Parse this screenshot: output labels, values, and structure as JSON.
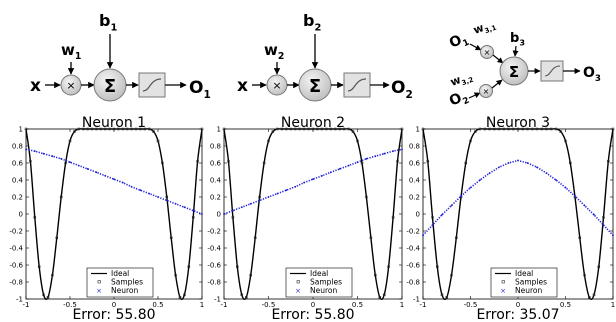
{
  "diagrams": [
    {
      "input_label": "x",
      "weight_label": "w1",
      "bias_label": "b1",
      "sum_symbol": "Σ",
      "output_label": "O1"
    },
    {
      "input_label": "x",
      "weight_label": "w2",
      "bias_label": "b2",
      "sum_symbol": "Σ",
      "output_label": "O2"
    },
    {
      "input1_label": "O1",
      "weight1_label": "w3,1",
      "input2_label": "O2",
      "weight2_label": "w3,2",
      "bias_label": "b3",
      "sum_symbol": "Σ",
      "output_label": "O3"
    }
  ],
  "colors": {
    "ideal": "#000000",
    "neuron": "#1f1fd8",
    "node_fill": "#d6d6d6",
    "box_fill": "#e2e2e2"
  },
  "icons": [
    "multiply-node-icon",
    "summation-node-icon",
    "sigmoid-activation-icon",
    "arrow-icon"
  ],
  "chart_data": [
    {
      "type": "line",
      "title": "Neuron 1",
      "caption": "Error: 55.80",
      "xlim": [
        -1,
        1
      ],
      "ylim": [
        -1,
        1
      ],
      "xticks": [
        "-1",
        "-0.5",
        "0",
        "0.5",
        "1"
      ],
      "yticks": [
        "-1",
        "-0.8",
        "-0.6",
        "-0.4",
        "-0.2",
        "0",
        "0.2",
        "0.4",
        "0.6",
        "0.8",
        "1"
      ],
      "legend": {
        "position": "bottom-center",
        "entries": [
          "Ideal",
          "Samples",
          "Neuron"
        ]
      },
      "series": [
        {
          "name": "Ideal",
          "x": [
            -1.0,
            -0.95,
            -0.9,
            -0.85,
            -0.8,
            -0.75,
            -0.7,
            -0.65,
            -0.6,
            -0.55,
            -0.5,
            -0.45,
            -0.4,
            -0.35,
            -0.3,
            -0.25,
            -0.2,
            -0.15,
            -0.1,
            -0.05,
            0.0,
            0.05,
            0.1,
            0.15,
            0.2,
            0.25,
            0.3,
            0.35,
            0.4,
            0.45,
            0.5,
            0.55,
            0.6,
            0.65,
            0.7,
            0.75,
            0.8,
            0.85,
            0.9,
            0.95,
            1.0
          ],
          "y": [
            1.0,
            0.62,
            -0.04,
            -0.62,
            -0.95,
            -0.98,
            -0.72,
            -0.28,
            0.2,
            0.6,
            0.86,
            0.97,
            1.0,
            1.0,
            1.0,
            1.0,
            1.0,
            1.0,
            1.0,
            1.0,
            1.0,
            1.0,
            1.0,
            1.0,
            1.0,
            1.0,
            1.0,
            1.0,
            1.0,
            0.97,
            0.86,
            0.6,
            0.2,
            -0.28,
            -0.72,
            -0.98,
            -0.95,
            -0.62,
            -0.04,
            0.62,
            1.0
          ]
        },
        {
          "name": "Neuron",
          "x": [
            -1.0,
            -0.9,
            -0.8,
            -0.7,
            -0.6,
            -0.5,
            -0.4,
            -0.3,
            -0.2,
            -0.1,
            0.0,
            0.1,
            0.2,
            0.3,
            0.4,
            0.5,
            0.6,
            0.7,
            0.8,
            0.9,
            1.0
          ],
          "y": [
            0.76,
            0.74,
            0.71,
            0.68,
            0.65,
            0.61,
            0.57,
            0.53,
            0.49,
            0.45,
            0.41,
            0.37,
            0.32,
            0.28,
            0.24,
            0.2,
            0.16,
            0.12,
            0.08,
            0.04,
            0.0
          ]
        }
      ]
    },
    {
      "type": "line",
      "title": "Neuron 2",
      "caption": "Error: 55.80",
      "xlim": [
        -1,
        1
      ],
      "ylim": [
        -1,
        1
      ],
      "xticks": [
        "-1",
        "-0.5",
        "0",
        "0.5",
        "1"
      ],
      "yticks": [
        "-1",
        "-0.8",
        "-0.6",
        "-0.4",
        "-0.2",
        "0",
        "0.2",
        "0.4",
        "0.6",
        "0.8",
        "1"
      ],
      "legend": {
        "position": "bottom-center",
        "entries": [
          "Ideal",
          "Samples",
          "Neuron"
        ]
      },
      "series": [
        {
          "name": "Ideal",
          "x": [
            -1.0,
            -0.95,
            -0.9,
            -0.85,
            -0.8,
            -0.75,
            -0.7,
            -0.65,
            -0.6,
            -0.55,
            -0.5,
            -0.45,
            -0.4,
            -0.35,
            -0.3,
            -0.25,
            -0.2,
            -0.15,
            -0.1,
            -0.05,
            0.0,
            0.05,
            0.1,
            0.15,
            0.2,
            0.25,
            0.3,
            0.35,
            0.4,
            0.45,
            0.5,
            0.55,
            0.6,
            0.65,
            0.7,
            0.75,
            0.8,
            0.85,
            0.9,
            0.95,
            1.0
          ],
          "y": [
            1.0,
            0.62,
            -0.04,
            -0.62,
            -0.95,
            -0.98,
            -0.72,
            -0.28,
            0.2,
            0.6,
            0.86,
            0.97,
            1.0,
            1.0,
            1.0,
            1.0,
            1.0,
            1.0,
            1.0,
            1.0,
            1.0,
            1.0,
            1.0,
            1.0,
            1.0,
            1.0,
            1.0,
            1.0,
            1.0,
            0.97,
            0.86,
            0.6,
            0.2,
            -0.28,
            -0.72,
            -0.98,
            -0.95,
            -0.62,
            -0.04,
            0.62,
            1.0
          ]
        },
        {
          "name": "Neuron",
          "x": [
            -1.0,
            -0.9,
            -0.8,
            -0.7,
            -0.6,
            -0.5,
            -0.4,
            -0.3,
            -0.2,
            -0.1,
            0.0,
            0.1,
            0.2,
            0.3,
            0.4,
            0.5,
            0.6,
            0.7,
            0.8,
            0.9,
            1.0
          ],
          "y": [
            0.0,
            0.04,
            0.08,
            0.12,
            0.16,
            0.2,
            0.24,
            0.28,
            0.32,
            0.37,
            0.41,
            0.45,
            0.49,
            0.53,
            0.57,
            0.61,
            0.65,
            0.68,
            0.71,
            0.74,
            0.76
          ]
        }
      ]
    },
    {
      "type": "line",
      "title": "Neuron 3",
      "caption": "Error: 35.07",
      "xlim": [
        -1,
        1
      ],
      "ylim": [
        -1,
        1
      ],
      "xticks": [
        "-1",
        "-0.5",
        "0",
        "0.5",
        "1"
      ],
      "yticks": [
        "-1",
        "-0.8",
        "-0.6",
        "-0.4",
        "-0.2",
        "0",
        "0.2",
        "0.4",
        "0.6",
        "0.8",
        "1"
      ],
      "legend": {
        "position": "bottom-center",
        "entries": [
          "Ideal",
          "Samples",
          "Neuron"
        ]
      },
      "series": [
        {
          "name": "Ideal",
          "x": [
            -1.0,
            -0.95,
            -0.9,
            -0.85,
            -0.8,
            -0.75,
            -0.7,
            -0.65,
            -0.6,
            -0.55,
            -0.5,
            -0.45,
            -0.4,
            -0.35,
            -0.3,
            -0.25,
            -0.2,
            -0.15,
            -0.1,
            -0.05,
            0.0,
            0.05,
            0.1,
            0.15,
            0.2,
            0.25,
            0.3,
            0.35,
            0.4,
            0.45,
            0.5,
            0.55,
            0.6,
            0.65,
            0.7,
            0.75,
            0.8,
            0.85,
            0.9,
            0.95,
            1.0
          ],
          "y": [
            1.0,
            0.62,
            -0.04,
            -0.62,
            -0.95,
            -0.98,
            -0.72,
            -0.28,
            0.2,
            0.6,
            0.86,
            0.97,
            1.0,
            1.0,
            1.0,
            1.0,
            1.0,
            1.0,
            1.0,
            1.0,
            1.0,
            1.0,
            1.0,
            1.0,
            1.0,
            1.0,
            1.0,
            1.0,
            1.0,
            0.97,
            0.86,
            0.6,
            0.2,
            -0.28,
            -0.72,
            -0.98,
            -0.95,
            -0.62,
            -0.04,
            0.62,
            1.0
          ]
        },
        {
          "name": "Neuron",
          "x": [
            -1.0,
            -0.9,
            -0.8,
            -0.7,
            -0.6,
            -0.5,
            -0.4,
            -0.3,
            -0.2,
            -0.1,
            0.0,
            0.1,
            0.2,
            0.3,
            0.4,
            0.5,
            0.6,
            0.7,
            0.8,
            0.9,
            1.0
          ],
          "y": [
            -0.25,
            -0.13,
            -0.01,
            0.1,
            0.21,
            0.31,
            0.4,
            0.48,
            0.55,
            0.6,
            0.63,
            0.6,
            0.55,
            0.48,
            0.4,
            0.31,
            0.21,
            0.1,
            -0.01,
            -0.13,
            -0.25
          ]
        }
      ]
    }
  ]
}
